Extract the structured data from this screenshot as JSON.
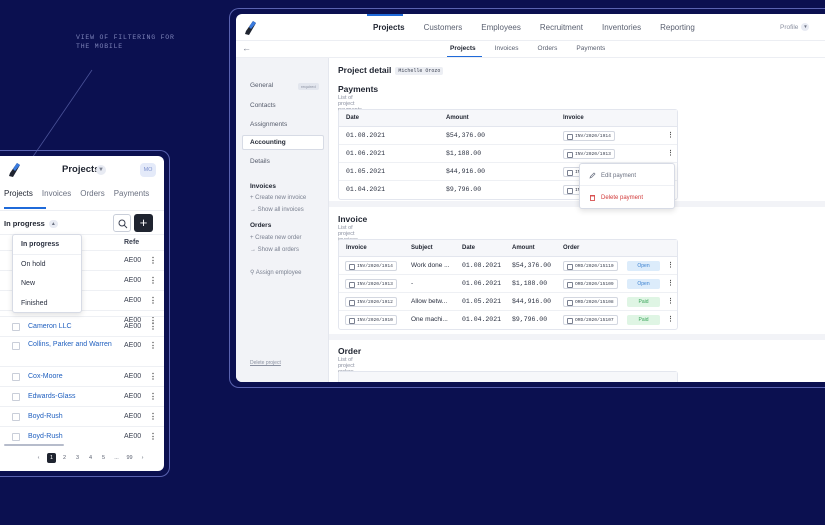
{
  "caption": "VIEW OF FILTERING FOR\nTHE MOBILE",
  "mobile": {
    "title": "Projects",
    "avatar": "MO",
    "tabs": [
      "Projects",
      "Invoices",
      "Orders",
      "Payments"
    ],
    "filter_label": "In progress",
    "add_label": "+",
    "dropdown": [
      "In progress",
      "On hold",
      "New",
      "Finished"
    ],
    "ref_header": "Refe",
    "rows": [
      {
        "name": "Cameron LLC",
        "ref": "AE00"
      },
      {
        "name": "Collins, Parker and Warren",
        "ref": "AE00"
      },
      {
        "name": "Cox-Moore",
        "ref": "AE00"
      },
      {
        "name": "Edwards-Glass",
        "ref": "AE00"
      },
      {
        "name": "Boyd-Rush",
        "ref": "AE00"
      },
      {
        "name": "Boyd-Rush",
        "ref": "AE00"
      }
    ],
    "hidden_refs": [
      "AE00",
      "AE00",
      "AE00",
      "AE00"
    ],
    "pager": [
      "‹",
      "1",
      "2",
      "3",
      "4",
      "5",
      "...",
      "99",
      "›"
    ]
  },
  "nav": {
    "items": [
      "Projects",
      "Customers",
      "Employees",
      "Recruitment",
      "Inventories",
      "Reporting"
    ],
    "profile": "Profile"
  },
  "subnav": {
    "back": "←",
    "items": [
      "Projects",
      "Invoices",
      "Orders",
      "Payments"
    ]
  },
  "sidebar": {
    "general": "General",
    "required": "required",
    "contacts": "Contacts",
    "assignments": "Assignments",
    "accounting": "Accounting",
    "details": "Details",
    "invoices_head": "Invoices",
    "create_invoice": "+  Create new invoice",
    "show_invoices": "→  Show all invoices",
    "orders_head": "Orders",
    "create_order": "+  Create new order",
    "show_orders": "→  Show all orders",
    "assign": "⚲  Assign employee",
    "delete": "Delete project"
  },
  "detail": {
    "title": "Project detail",
    "tag": "Michelle Orozo"
  },
  "payments": {
    "title": "Payments",
    "subtitle": "List of project payments.",
    "headers": [
      "Date",
      "Amount",
      "Invoice"
    ],
    "rows": [
      {
        "date": "01.08.2021",
        "amount": "$54,376.00",
        "invoice": "INV/2020/1914"
      },
      {
        "date": "01.06.2021",
        "amount": "$1,188.00",
        "invoice": "INV/2020/1913"
      },
      {
        "date": "01.05.2021",
        "amount": "$44,916.00",
        "invoice": "INV"
      },
      {
        "date": "01.04.2021",
        "amount": "$9,796.00",
        "invoice": "IN"
      }
    ],
    "menu": {
      "edit": "Edit payment",
      "delete": "Delete payment"
    }
  },
  "invoice": {
    "title": "Invoice",
    "subtitle": "List of project invoices.",
    "headers": [
      "Invoice",
      "Subject",
      "Date",
      "Amount",
      "Order"
    ],
    "rows": [
      {
        "invoice": "INV/2020/1914",
        "subject": "Work done ...",
        "date": "01.08.2021",
        "amount": "$54,376.00",
        "order": "ORD/2020/15110",
        "status": "Open"
      },
      {
        "invoice": "INV/2020/1913",
        "subject": "-",
        "date": "01.06.2021",
        "amount": "$1,188.00",
        "order": "ORD/2020/15109",
        "status": "Open"
      },
      {
        "invoice": "INV/2020/1912",
        "subject": "Allow betw...",
        "date": "01.05.2021",
        "amount": "$44,916.00",
        "order": "ORD/2020/15108",
        "status": "Paid"
      },
      {
        "invoice": "INV/2020/1910",
        "subject": "One machi...",
        "date": "01.04.2021",
        "amount": "$9,796.00",
        "order": "ORD/2020/15107",
        "status": "Paid"
      }
    ]
  },
  "order": {
    "title": "Order",
    "subtitle": "List of project orders."
  },
  "colors": {
    "background": "#0b1050",
    "accent": "#1f6ad9",
    "open": "#3a80d0",
    "paid": "#3aa55a",
    "danger": "#d23a3a"
  }
}
